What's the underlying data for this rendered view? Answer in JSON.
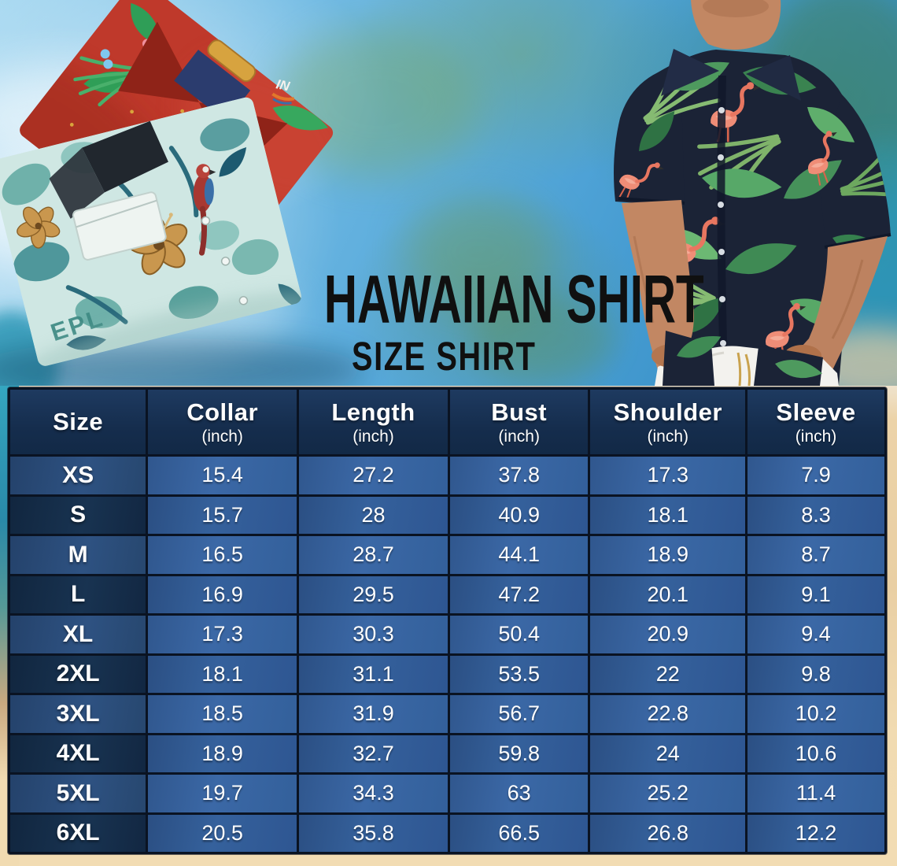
{
  "title": {
    "main": "HAWAIIAN SHIRT",
    "sub": "SIZE SHIRT"
  },
  "photo": {
    "print_epl": "EPL",
    "print_in": "IN"
  },
  "size_table": {
    "columns": [
      {
        "label": "Size",
        "unit": ""
      },
      {
        "label": "Collar",
        "unit": "(inch)"
      },
      {
        "label": "Length",
        "unit": "(inch)"
      },
      {
        "label": "Bust",
        "unit": "(inch)"
      },
      {
        "label": "Shoulder",
        "unit": "(inch)"
      },
      {
        "label": "Sleeve",
        "unit": "(inch)"
      }
    ],
    "rows": [
      {
        "size": "XS",
        "values": [
          "15.4",
          "27.2",
          "37.8",
          "17.3",
          "7.9"
        ]
      },
      {
        "size": "S",
        "values": [
          "15.7",
          "28",
          "40.9",
          "18.1",
          "8.3"
        ]
      },
      {
        "size": "M",
        "values": [
          "16.5",
          "28.7",
          "44.1",
          "18.9",
          "8.7"
        ]
      },
      {
        "size": "L",
        "values": [
          "16.9",
          "29.5",
          "47.2",
          "20.1",
          "9.1"
        ]
      },
      {
        "size": "XL",
        "values": [
          "17.3",
          "30.3",
          "50.4",
          "20.9",
          "9.4"
        ]
      },
      {
        "size": "2XL",
        "values": [
          "18.1",
          "31.1",
          "53.5",
          "22",
          "9.8"
        ]
      },
      {
        "size": "3XL",
        "values": [
          "18.5",
          "31.9",
          "56.7",
          "22.8",
          "10.2"
        ]
      },
      {
        "size": "4XL",
        "values": [
          "18.9",
          "32.7",
          "59.8",
          "24",
          "10.6"
        ]
      },
      {
        "size": "5XL",
        "values": [
          "19.7",
          "34.3",
          "63",
          "25.2",
          "11.4"
        ]
      },
      {
        "size": "6XL",
        "values": [
          "20.5",
          "35.8",
          "66.5",
          "26.8",
          "12.2"
        ]
      }
    ]
  },
  "chart_data": {
    "type": "table",
    "title": "Hawaiian Shirt Size Shirt",
    "columns": [
      "Size",
      "Collar (inch)",
      "Length (inch)",
      "Bust (inch)",
      "Shoulder (inch)",
      "Sleeve (inch)"
    ],
    "rows": [
      [
        "XS",
        15.4,
        27.2,
        37.8,
        17.3,
        7.9
      ],
      [
        "S",
        15.7,
        28,
        40.9,
        18.1,
        8.3
      ],
      [
        "M",
        16.5,
        28.7,
        44.1,
        18.9,
        8.7
      ],
      [
        "L",
        16.9,
        29.5,
        47.2,
        20.1,
        9.1
      ],
      [
        "XL",
        17.3,
        30.3,
        50.4,
        20.9,
        9.4
      ],
      [
        "2XL",
        18.1,
        31.1,
        53.5,
        22,
        9.8
      ],
      [
        "3XL",
        18.5,
        31.9,
        56.7,
        22.8,
        10.2
      ],
      [
        "4XL",
        18.9,
        32.7,
        59.8,
        24,
        10.6
      ],
      [
        "5XL",
        19.7,
        34.3,
        63,
        25.2,
        11.4
      ],
      [
        "6XL",
        20.5,
        35.8,
        66.5,
        26.8,
        12.2
      ]
    ]
  },
  "colors": {
    "header_navy": "#152D4D",
    "row_blue": "#35639E",
    "row_navy": "#14304E",
    "grid_line": "#0A1322",
    "sand": "#F2DCB3",
    "title_black": "#101010",
    "sky_blue": "#54A7DA"
  }
}
